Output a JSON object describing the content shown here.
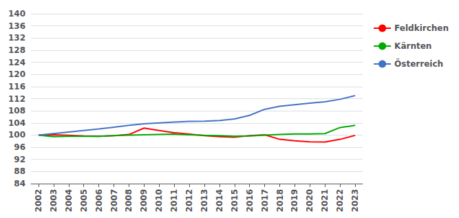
{
  "chart_data": {
    "type": "line",
    "x": [
      2002,
      2003,
      2004,
      2005,
      2006,
      2007,
      2008,
      2009,
      2010,
      2011,
      2012,
      2013,
      2014,
      2015,
      2016,
      2017,
      2018,
      2019,
      2020,
      2021,
      2022,
      2023
    ],
    "series": [
      {
        "name": "Feldkirchen",
        "color": "#ff0000",
        "values": [
          100.0,
          100.1,
          99.9,
          99.7,
          99.6,
          99.8,
          100.2,
          102.3,
          101.5,
          100.8,
          100.3,
          99.8,
          99.5,
          99.3,
          99.8,
          100.1,
          98.6,
          98.1,
          97.8,
          97.7,
          98.6,
          99.9
        ]
      },
      {
        "name": "Kärnten",
        "color": "#00aa00",
        "values": [
          100.0,
          99.5,
          99.6,
          99.6,
          99.6,
          99.8,
          100.0,
          100.1,
          100.2,
          100.3,
          100.1,
          99.9,
          99.8,
          99.6,
          99.7,
          100.0,
          100.2,
          100.4,
          100.4,
          100.5,
          102.5,
          103.2
        ]
      },
      {
        "name": "Österreich",
        "color": "#4472c4",
        "values": [
          100.0,
          100.5,
          101.0,
          101.5,
          102.0,
          102.6,
          103.2,
          103.7,
          104.0,
          104.3,
          104.5,
          104.6,
          104.8,
          105.3,
          106.5,
          108.5,
          109.5,
          110.0,
          110.5,
          111.0,
          111.8,
          113.0
        ]
      }
    ],
    "xlim": [
      2001.5,
      2023.5
    ],
    "xticks": [
      2002,
      2003,
      2004,
      2005,
      2006,
      2007,
      2008,
      2009,
      2010,
      2011,
      2012,
      2013,
      2014,
      2015,
      2016,
      2017,
      2018,
      2019,
      2020,
      2021,
      2022,
      2023
    ],
    "ylim": [
      84,
      140
    ],
    "yticks": [
      84,
      88,
      92,
      96,
      100,
      104,
      108,
      112,
      116,
      120,
      124,
      128,
      132,
      136,
      140
    ],
    "grid": true,
    "legend": "right"
  }
}
